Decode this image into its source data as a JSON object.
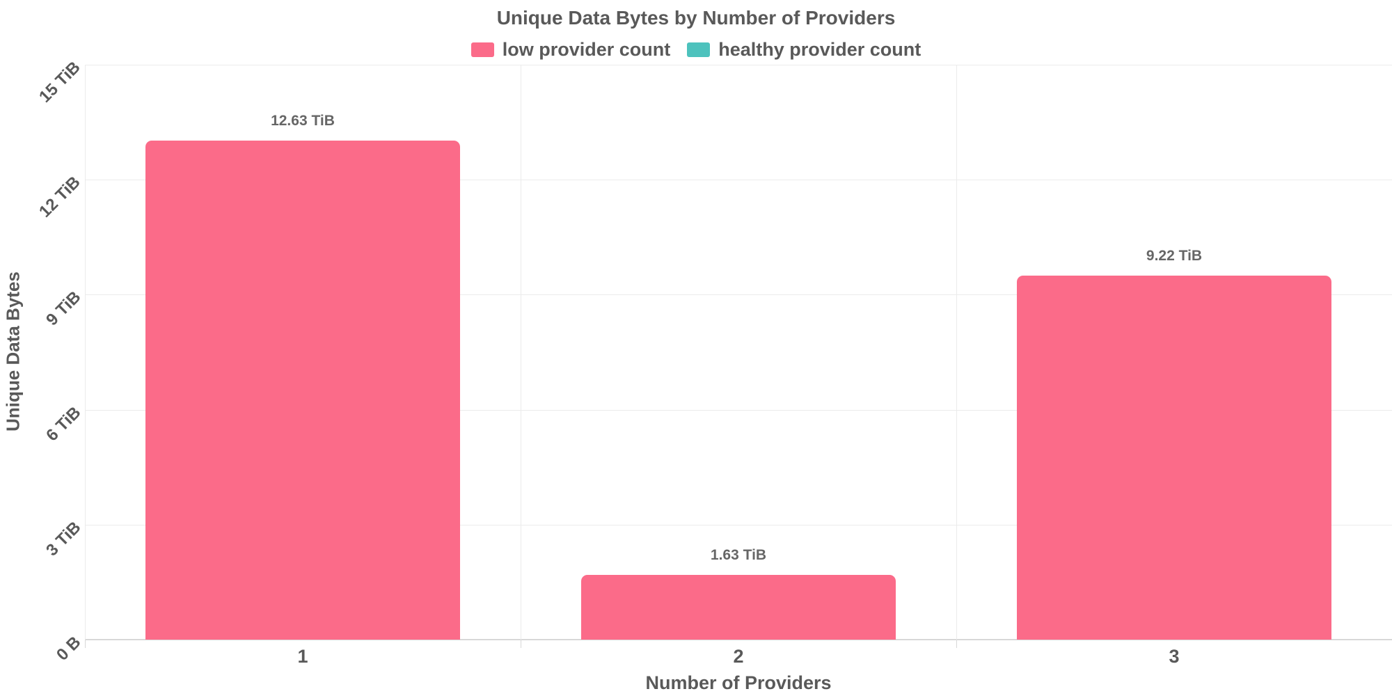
{
  "chart_data": {
    "type": "bar",
    "title": "Unique Data Bytes by Number of Providers",
    "xlabel": "Number of Providers",
    "ylabel": "Unique Data Bytes",
    "categories": [
      "1",
      "2",
      "3"
    ],
    "series": [
      {
        "name": "low provider count",
        "color": "#FB6B89",
        "unit": "TiB",
        "values": [
          12.63,
          1.63,
          9.22
        ],
        "data_labels": [
          "12.63 TiB",
          "1.63 TiB",
          "9.22 TiB"
        ]
      },
      {
        "name": "healthy provider count",
        "color": "#4DC2BD",
        "unit": "TiB",
        "values": [],
        "data_labels": []
      }
    ],
    "y_ticks": [
      "0 B",
      "3 TiB",
      "6 TiB",
      "9 TiB",
      "12 TiB",
      "15 TiB"
    ],
    "ylim": [
      0,
      15
    ],
    "grid": true,
    "legend_position": "top",
    "colors": {
      "text": "#595959",
      "value_label_text": "#666666",
      "gridline": "#ebebeb",
      "axis_line": "#d8d8d8",
      "background": "#ffffff"
    }
  }
}
